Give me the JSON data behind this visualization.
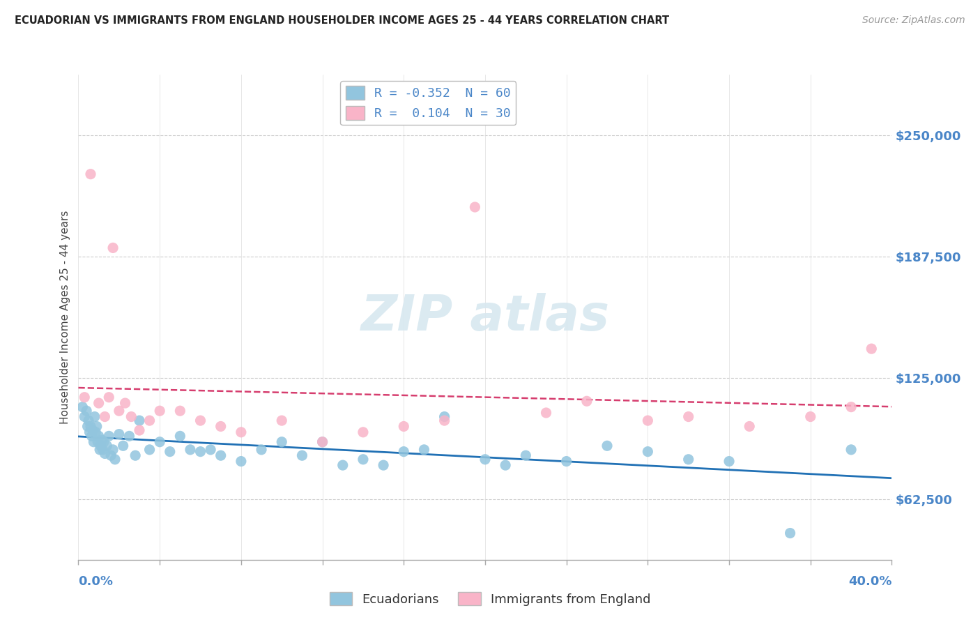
{
  "title": "ECUADORIAN VS IMMIGRANTS FROM ENGLAND HOUSEHOLDER INCOME AGES 25 - 44 YEARS CORRELATION CHART",
  "source": "Source: ZipAtlas.com",
  "ylabel": "Householder Income Ages 25 - 44 years",
  "xlim": [
    0.0,
    40.0
  ],
  "ylim": [
    31250,
    281250
  ],
  "yticks": [
    62500,
    125000,
    187500,
    250000
  ],
  "ytick_labels": [
    "$62,500",
    "$125,000",
    "$187,500",
    "$250,000"
  ],
  "blue_fill": "#92C5DE",
  "pink_fill": "#F9B4C8",
  "blue_line": "#2171b5",
  "pink_line": "#d63d6e",
  "ecuadorians_x": [
    0.2,
    0.3,
    0.4,
    0.45,
    0.5,
    0.55,
    0.6,
    0.65,
    0.7,
    0.75,
    0.8,
    0.85,
    0.9,
    0.95,
    1.0,
    1.05,
    1.1,
    1.15,
    1.2,
    1.25,
    1.3,
    1.4,
    1.5,
    1.6,
    1.7,
    1.8,
    2.0,
    2.2,
    2.5,
    2.8,
    3.0,
    3.5,
    4.0,
    4.5,
    5.0,
    5.5,
    6.0,
    6.5,
    7.0,
    8.0,
    9.0,
    10.0,
    11.0,
    12.0,
    13.0,
    14.0,
    15.0,
    16.0,
    17.0,
    18.0,
    20.0,
    21.0,
    22.0,
    24.0,
    26.0,
    28.0,
    30.0,
    32.0,
    35.0,
    38.0
  ],
  "ecuadorians_y": [
    110000,
    105000,
    108000,
    100000,
    103000,
    97000,
    100000,
    95000,
    98000,
    92000,
    105000,
    97000,
    100000,
    92000,
    95000,
    88000,
    90000,
    93000,
    88000,
    92000,
    86000,
    90000,
    95000,
    85000,
    88000,
    83000,
    96000,
    90000,
    95000,
    85000,
    103000,
    88000,
    92000,
    87000,
    95000,
    88000,
    87000,
    88000,
    85000,
    82000,
    88000,
    92000,
    85000,
    92000,
    80000,
    83000,
    80000,
    87000,
    88000,
    105000,
    83000,
    80000,
    85000,
    82000,
    90000,
    87000,
    83000,
    82000,
    45000,
    88000
  ],
  "england_x": [
    0.3,
    0.6,
    1.0,
    1.3,
    1.5,
    1.7,
    2.0,
    2.3,
    2.6,
    3.0,
    3.5,
    4.0,
    5.0,
    6.0,
    7.0,
    8.0,
    10.0,
    12.0,
    14.0,
    16.0,
    18.0,
    19.5,
    23.0,
    25.0,
    28.0,
    30.0,
    33.0,
    36.0,
    38.0,
    39.0
  ],
  "england_y": [
    115000,
    230000,
    112000,
    105000,
    115000,
    192000,
    108000,
    112000,
    105000,
    98000,
    103000,
    108000,
    108000,
    103000,
    100000,
    97000,
    103000,
    92000,
    97000,
    100000,
    103000,
    213000,
    107000,
    113000,
    103000,
    105000,
    100000,
    105000,
    110000,
    140000
  ]
}
